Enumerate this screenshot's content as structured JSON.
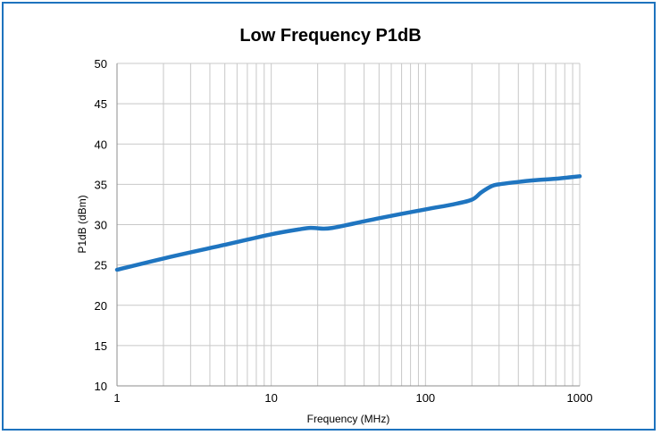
{
  "colors": {
    "frame": "#1e73be",
    "series": "#1f75c0",
    "grid": "#c8c8c8"
  },
  "chart_data": {
    "type": "line",
    "title": "Low Frequency P1dB",
    "xlabel": "Frequency (MHz)",
    "ylabel": "P1dB (dBm)",
    "xscale": "log",
    "xlim": [
      1,
      1000
    ],
    "ylim": [
      10,
      50
    ],
    "xticks": [
      1,
      10,
      100,
      1000
    ],
    "xtick_labels": [
      "1",
      "10",
      "100",
      "1000"
    ],
    "yticks": [
      10,
      15,
      20,
      25,
      30,
      35,
      40,
      45,
      50
    ],
    "ytick_labels": [
      "10",
      "15",
      "20",
      "25",
      "30",
      "35",
      "40",
      "45",
      "50"
    ],
    "grid": true,
    "legend": false,
    "series": [
      {
        "x": [
          1,
          2,
          5,
          10,
          15,
          18,
          22,
          25,
          30,
          50,
          100,
          150,
          200,
          230,
          270,
          300,
          400,
          500,
          700,
          1000
        ],
        "y": [
          24.4,
          25.8,
          27.5,
          28.8,
          29.4,
          29.6,
          29.5,
          29.6,
          29.9,
          30.8,
          31.9,
          32.5,
          33.1,
          34.0,
          34.8,
          35.0,
          35.3,
          35.5,
          35.7,
          36.0
        ]
      }
    ]
  }
}
